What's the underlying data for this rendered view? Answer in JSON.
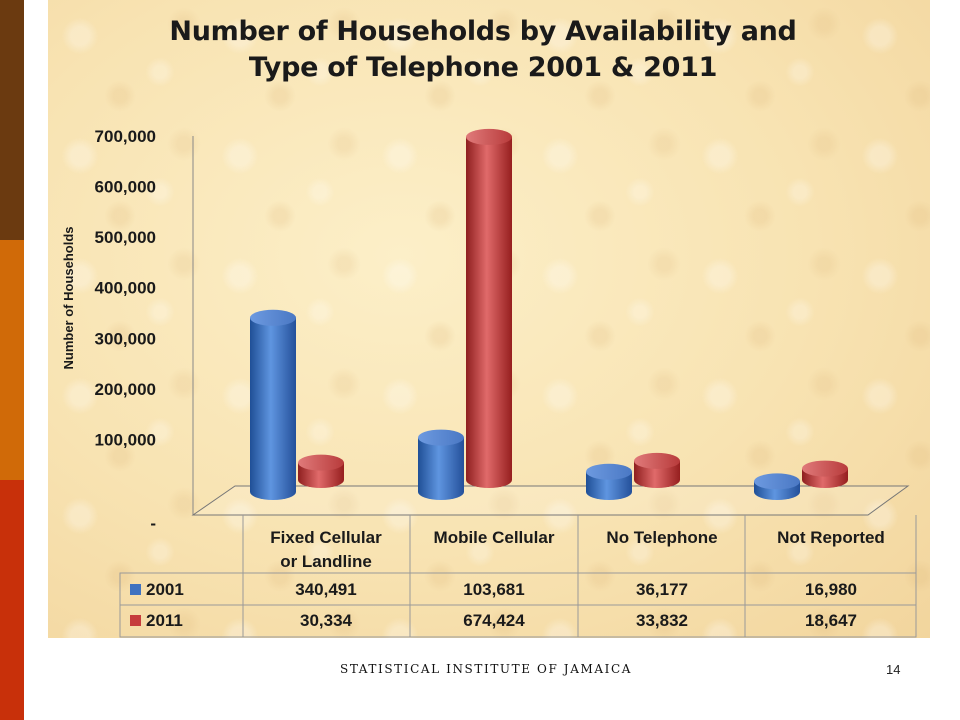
{
  "chart_data": {
    "type": "bar",
    "title_line1": "Number of Households by Availability and",
    "title_line2": "Type of Telephone  2001 & 2011",
    "ylabel": "Number of Households",
    "ylim": [
      0,
      700000
    ],
    "yticks": [
      0,
      100000,
      200000,
      300000,
      400000,
      500000,
      600000,
      700000
    ],
    "ytick_labels": [
      "-",
      "100,000",
      "200,000",
      "300,000",
      "400,000",
      "500,000",
      "600,000",
      "700,000"
    ],
    "categories": [
      "Fixed Cellular or Landline",
      "Mobile Cellular",
      "No Telephone",
      "Not Reported"
    ],
    "category_lines": [
      [
        "Fixed Cellular",
        "or Landline"
      ],
      [
        "Mobile Cellular"
      ],
      [
        "No Telephone"
      ],
      [
        "Not Reported"
      ]
    ],
    "series": [
      {
        "name": "2001",
        "color": "#3f72c0",
        "values": [
          340491,
          103681,
          36177,
          16980
        ],
        "labels": [
          "340,491",
          "103,681",
          "36,177",
          "16,980"
        ]
      },
      {
        "name": "2011",
        "color": "#c63c3c",
        "values": [
          30334,
          674424,
          33832,
          18647
        ],
        "labels": [
          "30,334",
          "674,424",
          "33,832",
          "18,647"
        ]
      }
    ]
  },
  "footer": {
    "institute": "STATISTICAL INSTITUTE OF JAMAICA",
    "page_number": "14"
  }
}
